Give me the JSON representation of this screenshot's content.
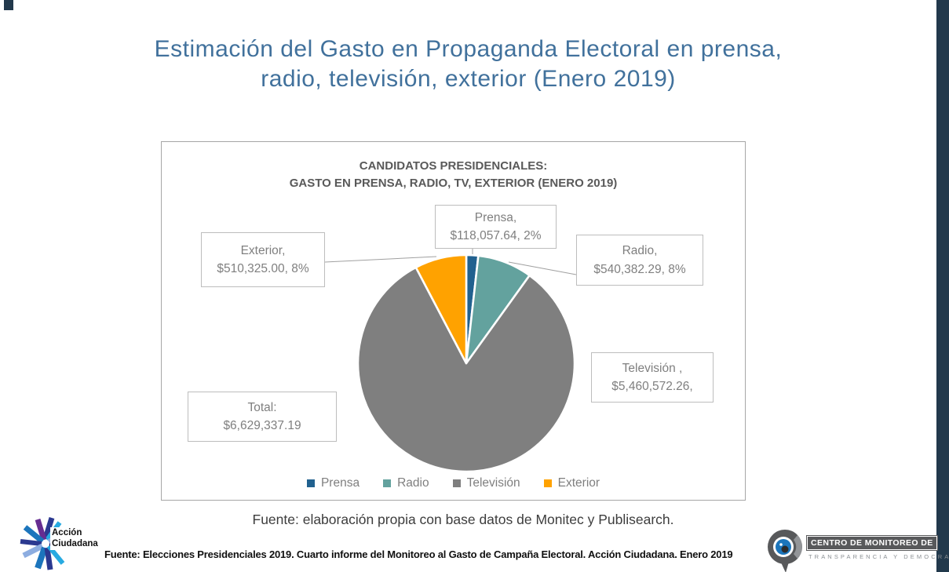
{
  "slide": {
    "title_line1": "Estimación del Gasto en Propaganda Electoral en prensa,",
    "title_line2": "radio, televisión, exterior (Enero 2019)",
    "accent_color": "#22394c",
    "title_color": "#41719c"
  },
  "chart_data": {
    "type": "pie",
    "title_line1": "CANDIDATOS PRESIDENCIALES:",
    "title_line2": "GASTO EN PRENSA, RADIO, TV, EXTERIOR (ENERO 2019)",
    "categories": [
      "Prensa",
      "Radio",
      "Televisión",
      "Exterior"
    ],
    "values": [
      118057.64,
      540382.29,
      5460572.26,
      510325.0
    ],
    "percent_labels": [
      "2%",
      "8%",
      "82%",
      "8%"
    ],
    "colors": [
      "#21618f",
      "#63a29e",
      "#7f7f7f",
      "#ffa200"
    ],
    "total": 6629337.19,
    "start_angle_deg": 0,
    "direction": "clockwise",
    "legend_position": "bottom"
  },
  "callouts": {
    "prensa": {
      "line1": "Prensa,",
      "line2": "$118,057.64, 2%"
    },
    "radio": {
      "line1": "Radio,",
      "line2": "$540,382.29, 8%"
    },
    "exterior": {
      "line1": "Exterior,",
      "line2": "$510,325.00, 8%"
    },
    "television": {
      "line1": "Televisión ,",
      "line2": "$5,460,572.26,"
    },
    "total": {
      "line1": "Total:",
      "line2": "$6,629,337.19"
    }
  },
  "legend": {
    "items": [
      {
        "label": "Prensa",
        "color": "#21618f"
      },
      {
        "label": "Radio",
        "color": "#63a29e"
      },
      {
        "label": "Televisión",
        "color": "#7f7f7f"
      },
      {
        "label": "Exterior",
        "color": "#ffa200"
      }
    ]
  },
  "footer": {
    "source_note": "Fuente: elaboración propia con base datos de Monitec y Publisearch.",
    "bottom_source": "Fuente: Elecciones Presidenciales 2019. Cuarto informe del Monitoreo al Gasto de Campaña Electoral. Acción Ciudadana. Enero 2019"
  },
  "logos": {
    "accion_ciudadana": {
      "line1": "Acción",
      "line2": "Ciudadana"
    },
    "centro_monitoreo": {
      "line1": "CENTRO DE MONITOREO DE",
      "line2": "TRANSPARENCIA Y DEMOCRACIA"
    }
  }
}
